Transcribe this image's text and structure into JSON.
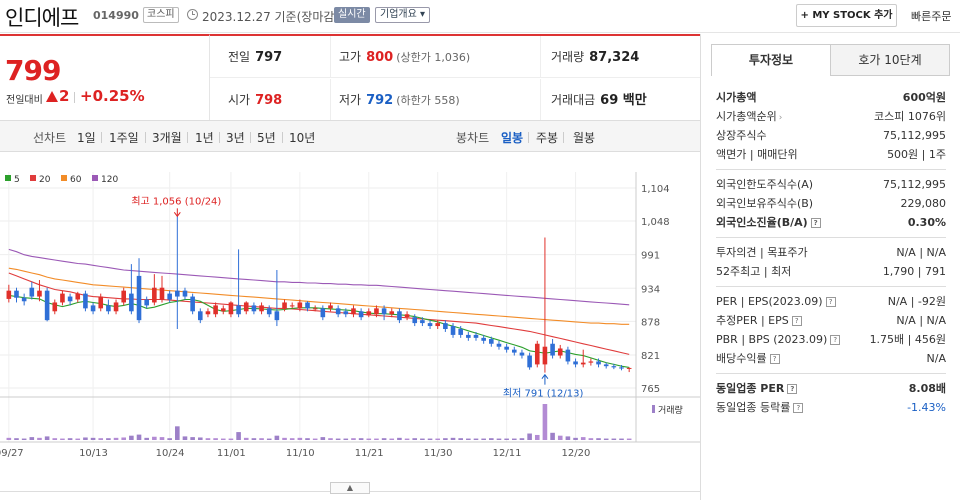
{
  "header": {
    "name": "인디에프",
    "code": "014990",
    "market": "코스피",
    "date": "2023.12.27 기준(장마감)",
    "realtime": "실시간",
    "overview": "기업개요",
    "mystock": "+ MY STOCK 추가",
    "quick_order": "빠른주문"
  },
  "price": {
    "current": "799",
    "change_label": "전일대비",
    "change": "2",
    "rate": "+0.25%"
  },
  "summary": {
    "prev_label": "전일",
    "prev": "797",
    "high_label": "고가",
    "high": "800",
    "upper_limit": "(상한가 1,036)",
    "volume_label": "거래량",
    "volume": "87,324",
    "open_label": "시가",
    "open": "798",
    "low_label": "저가",
    "low": "792",
    "lower_limit": "(하한가 558)",
    "amount_label": "거래대금",
    "amount": "69 백만"
  },
  "toolbar": {
    "line_label": "선차트",
    "periods": [
      "1일",
      "1주일",
      "3개월",
      "1년",
      "3년",
      "5년",
      "10년"
    ],
    "candle_label": "봉차트",
    "candles": [
      "일봉",
      "주봉",
      "월봉"
    ],
    "active_candle": "일봉"
  },
  "chart_data": {
    "type": "candlestick",
    "legend": [
      {
        "name": "5",
        "color": "#2ca02c"
      },
      {
        "name": "20",
        "color": "#e03c3c"
      },
      {
        "name": "60",
        "color": "#f28c28"
      },
      {
        "name": "120",
        "color": "#9b59b6"
      }
    ],
    "y_ticks": [
      1104,
      1048,
      991,
      934,
      878,
      821,
      765
    ],
    "ylim": [
      765,
      1104
    ],
    "x_labels": [
      "09/27",
      "10/13",
      "10/24",
      "11/01",
      "11/10",
      "11/21",
      "11/30",
      "12/11",
      "12/20"
    ],
    "annotation_high": "최고 1,056 (10/24)",
    "annotation_low": "최저 791 (12/13)",
    "volume_label": "거래량",
    "candles": [
      {
        "o": 916,
        "c": 930,
        "h": 940,
        "l": 910
      },
      {
        "o": 930,
        "c": 918,
        "h": 935,
        "l": 910
      },
      {
        "o": 918,
        "c": 912,
        "h": 925,
        "l": 905
      },
      {
        "o": 935,
        "c": 920,
        "h": 945,
        "l": 915
      },
      {
        "o": 920,
        "c": 930,
        "h": 948,
        "l": 912
      },
      {
        "o": 930,
        "c": 880,
        "h": 935,
        "l": 878
      },
      {
        "o": 895,
        "c": 910,
        "h": 915,
        "l": 890
      },
      {
        "o": 910,
        "c": 925,
        "h": 930,
        "l": 905
      },
      {
        "o": 920,
        "c": 912,
        "h": 925,
        "l": 905
      },
      {
        "o": 915,
        "c": 925,
        "h": 928,
        "l": 910
      },
      {
        "o": 925,
        "c": 900,
        "h": 930,
        "l": 895
      },
      {
        "o": 905,
        "c": 895,
        "h": 910,
        "l": 890
      },
      {
        "o": 900,
        "c": 920,
        "h": 925,
        "l": 895
      },
      {
        "o": 905,
        "c": 895,
        "h": 915,
        "l": 890
      },
      {
        "o": 895,
        "c": 910,
        "h": 915,
        "l": 890
      },
      {
        "o": 910,
        "c": 930,
        "h": 935,
        "l": 905
      },
      {
        "o": 925,
        "c": 895,
        "h": 975,
        "l": 890
      },
      {
        "o": 955,
        "c": 880,
        "h": 985,
        "l": 875
      },
      {
        "o": 915,
        "c": 905,
        "h": 920,
        "l": 900
      },
      {
        "o": 910,
        "c": 935,
        "h": 958,
        "l": 905
      },
      {
        "o": 915,
        "c": 935,
        "h": 955,
        "l": 910
      },
      {
        "o": 925,
        "c": 915,
        "h": 930,
        "l": 910
      },
      {
        "o": 930,
        "c": 920,
        "h": 1056,
        "l": 865
      },
      {
        "o": 930,
        "c": 920,
        "h": 935,
        "l": 915
      },
      {
        "o": 920,
        "c": 895,
        "h": 925,
        "l": 890
      },
      {
        "o": 895,
        "c": 880,
        "h": 900,
        "l": 875
      },
      {
        "o": 890,
        "c": 895,
        "h": 900,
        "l": 885
      },
      {
        "o": 890,
        "c": 905,
        "h": 910,
        "l": 885
      },
      {
        "o": 895,
        "c": 900,
        "h": 905,
        "l": 890
      },
      {
        "o": 890,
        "c": 910,
        "h": 912,
        "l": 885
      },
      {
        "o": 905,
        "c": 890,
        "h": 1000,
        "l": 885
      },
      {
        "o": 895,
        "c": 910,
        "h": 912,
        "l": 890
      },
      {
        "o": 905,
        "c": 895,
        "h": 910,
        "l": 890
      },
      {
        "o": 895,
        "c": 905,
        "h": 910,
        "l": 890
      },
      {
        "o": 900,
        "c": 890,
        "h": 905,
        "l": 885
      },
      {
        "o": 895,
        "c": 880,
        "h": 965,
        "l": 870
      },
      {
        "o": 900,
        "c": 910,
        "h": 915,
        "l": 895
      },
      {
        "o": 905,
        "c": 905,
        "h": 910,
        "l": 900
      },
      {
        "o": 900,
        "c": 910,
        "h": 915,
        "l": 895
      },
      {
        "o": 910,
        "c": 900,
        "h": 912,
        "l": 895
      },
      {
        "o": 900,
        "c": 900,
        "h": 905,
        "l": 895
      },
      {
        "o": 900,
        "c": 885,
        "h": 905,
        "l": 880
      },
      {
        "o": 900,
        "c": 905,
        "h": 910,
        "l": 895
      },
      {
        "o": 900,
        "c": 890,
        "h": 905,
        "l": 885
      },
      {
        "o": 895,
        "c": 890,
        "h": 900,
        "l": 885
      },
      {
        "o": 890,
        "c": 900,
        "h": 905,
        "l": 885
      },
      {
        "o": 895,
        "c": 885,
        "h": 900,
        "l": 880
      },
      {
        "o": 888,
        "c": 895,
        "h": 900,
        "l": 885
      },
      {
        "o": 890,
        "c": 900,
        "h": 905,
        "l": 885
      },
      {
        "o": 900,
        "c": 890,
        "h": 905,
        "l": 880
      },
      {
        "o": 890,
        "c": 895,
        "h": 900,
        "l": 885
      },
      {
        "o": 895,
        "c": 880,
        "h": 900,
        "l": 875
      },
      {
        "o": 885,
        "c": 890,
        "h": 895,
        "l": 880
      },
      {
        "o": 885,
        "c": 875,
        "h": 890,
        "l": 870
      },
      {
        "o": 880,
        "c": 875,
        "h": 885,
        "l": 870
      },
      {
        "o": 875,
        "c": 870,
        "h": 880,
        "l": 865
      },
      {
        "o": 870,
        "c": 875,
        "h": 880,
        "l": 865
      },
      {
        "o": 875,
        "c": 865,
        "h": 880,
        "l": 860
      },
      {
        "o": 870,
        "c": 855,
        "h": 875,
        "l": 850
      },
      {
        "o": 865,
        "c": 855,
        "h": 870,
        "l": 850
      },
      {
        "o": 855,
        "c": 850,
        "h": 860,
        "l": 845
      },
      {
        "o": 855,
        "c": 850,
        "h": 860,
        "l": 845
      },
      {
        "o": 850,
        "c": 845,
        "h": 855,
        "l": 840
      },
      {
        "o": 848,
        "c": 840,
        "h": 852,
        "l": 835
      },
      {
        "o": 840,
        "c": 835,
        "h": 845,
        "l": 830
      },
      {
        "o": 835,
        "c": 830,
        "h": 840,
        "l": 825
      },
      {
        "o": 830,
        "c": 825,
        "h": 835,
        "l": 820
      },
      {
        "o": 825,
        "c": 820,
        "h": 830,
        "l": 815
      },
      {
        "o": 820,
        "c": 800,
        "h": 825,
        "l": 796
      },
      {
        "o": 805,
        "c": 840,
        "h": 845,
        "l": 800
      },
      {
        "o": 805,
        "c": 835,
        "h": 1020,
        "l": 791
      },
      {
        "o": 840,
        "c": 820,
        "h": 848,
        "l": 815
      },
      {
        "o": 820,
        "c": 832,
        "h": 838,
        "l": 815
      },
      {
        "o": 830,
        "c": 810,
        "h": 835,
        "l": 805
      },
      {
        "o": 810,
        "c": 805,
        "h": 815,
        "l": 800
      },
      {
        "o": 805,
        "c": 808,
        "h": 830,
        "l": 800
      },
      {
        "o": 808,
        "c": 810,
        "h": 815,
        "l": 803
      },
      {
        "o": 810,
        "c": 805,
        "h": 815,
        "l": 800
      },
      {
        "o": 805,
        "c": 802,
        "h": 808,
        "l": 798
      },
      {
        "o": 802,
        "c": 800,
        "h": 806,
        "l": 797
      },
      {
        "o": 800,
        "c": 798,
        "h": 804,
        "l": 795
      },
      {
        "o": 798,
        "c": 799,
        "h": 800,
        "l": 792
      }
    ],
    "ma120": [
      1000,
      996,
      991,
      988,
      986,
      984,
      982,
      980,
      978,
      976,
      975,
      973,
      971,
      969,
      967,
      965,
      964,
      963,
      962,
      961,
      960,
      959,
      958,
      957,
      956,
      955,
      954,
      953,
      952,
      951,
      950,
      949,
      948,
      947,
      946,
      945,
      945,
      944,
      944,
      943,
      943,
      942,
      942,
      941,
      941,
      940,
      940,
      939,
      939,
      938,
      937,
      936,
      935,
      934,
      933,
      932,
      931,
      930,
      929,
      928,
      927,
      926,
      925,
      924,
      923,
      922,
      921,
      920,
      919,
      918,
      917,
      916,
      915,
      914,
      913,
      912,
      911,
      910,
      909,
      908,
      907,
      906
    ],
    "ma60": [
      968,
      966,
      963,
      960,
      957,
      953,
      950,
      948,
      946,
      944,
      942,
      940,
      939,
      938,
      937,
      936,
      935,
      934,
      933,
      932,
      931,
      930,
      929,
      928,
      927,
      926,
      925,
      924,
      923,
      922,
      921,
      920,
      919,
      918,
      917,
      916,
      915,
      914,
      913,
      912,
      911,
      910,
      909,
      908,
      907,
      906,
      905,
      904,
      903,
      902,
      901,
      900,
      899,
      898,
      897,
      896,
      895,
      894,
      893,
      892,
      891,
      890,
      889,
      888,
      887,
      886,
      885,
      884,
      883,
      882,
      881,
      880,
      879,
      878,
      877,
      876,
      875,
      875,
      874,
      874,
      873,
      873
    ],
    "ma20": [
      960,
      955,
      950,
      945,
      940,
      936,
      932,
      930,
      928,
      925,
      922,
      920,
      919,
      918,
      917,
      916,
      916,
      915,
      915,
      915,
      915,
      914,
      913,
      912,
      911,
      910,
      909,
      908,
      907,
      906,
      905,
      904,
      903,
      902,
      901,
      900,
      900,
      899,
      898,
      897,
      896,
      895,
      894,
      893,
      892,
      891,
      890,
      889,
      888,
      887,
      886,
      885,
      884,
      883,
      882,
      881,
      880,
      879,
      878,
      877,
      876,
      875,
      873,
      871,
      869,
      867,
      865,
      863,
      861,
      858,
      855,
      852,
      849,
      846,
      843,
      840,
      837,
      834,
      831,
      828,
      825,
      822
    ],
    "ma5": [
      922,
      920,
      918,
      917,
      916,
      910,
      906,
      903,
      906,
      910,
      912,
      910,
      908,
      905,
      903,
      905,
      908,
      905,
      900,
      902,
      906,
      910,
      912,
      915,
      915,
      912,
      905,
      898,
      895,
      896,
      898,
      900,
      900,
      899,
      898,
      897,
      898,
      900,
      901,
      901,
      901,
      900,
      899,
      898,
      897,
      896,
      894,
      892,
      891,
      891,
      890,
      889,
      888,
      886,
      883,
      880,
      877,
      873,
      870,
      866,
      862,
      858,
      854,
      850,
      846,
      842,
      838,
      834,
      828,
      826,
      824,
      826,
      828,
      825,
      822,
      820,
      816,
      812,
      808,
      805,
      802,
      800
    ],
    "volumes": [
      6,
      5,
      4,
      8,
      6,
      10,
      5,
      4,
      5,
      4,
      7,
      6,
      5,
      5,
      6,
      7,
      12,
      15,
      6,
      9,
      8,
      5,
      38,
      10,
      8,
      7,
      5,
      5,
      4,
      4,
      22,
      6,
      5,
      5,
      4,
      12,
      6,
      5,
      6,
      5,
      4,
      8,
      5,
      4,
      4,
      5,
      5,
      4,
      4,
      5,
      4,
      6,
      4,
      5,
      4,
      4,
      4,
      5,
      6,
      5,
      4,
      4,
      4,
      5,
      4,
      4,
      4,
      5,
      18,
      14,
      100,
      20,
      12,
      10,
      6,
      8,
      5,
      5,
      4,
      4,
      4,
      4
    ]
  },
  "invest": {
    "tab1": "투자정보",
    "tab2": "호가 10단계",
    "market_cap_label": "시가총액",
    "market_cap": "600억원",
    "rank_label": "시가총액순위",
    "rank": "코스피 1076위",
    "shares_label": "상장주식수",
    "shares": "75,112,995",
    "par_label": "액면가",
    "unit_label": "매매단위",
    "par_unit": "500원 | 1주",
    "foreign_limit_label": "외국인한도주식수(A)",
    "foreign_limit": "75,112,995",
    "foreign_hold_label": "외국인보유주식수(B)",
    "foreign_hold": "229,080",
    "foreign_rate_label": "외국인소진율(B/A)",
    "foreign_rate": "0.30%",
    "opinion_label": "투자의견",
    "target_label": "목표주가",
    "opinion_target": "N/A | N/A",
    "w52_label": "52주최고",
    "w52_low_label": "최저",
    "w52": "1,790 | 791",
    "per_label": "PER",
    "eps_label": "EPS(2023.09)",
    "per_eps": "N/A | -92원",
    "est_per_label": "추정PER",
    "est_eps_label": "EPS",
    "est_per_eps": "N/A | N/A",
    "pbr_label": "PBR",
    "bps_label": "BPS (2023.09)",
    "pbr_bps": "1.75배 | 456원",
    "div_label": "배당수익률",
    "div": "N/A",
    "ind_per_label": "동일업종 PER",
    "ind_per": "8.08배",
    "ind_rate_label": "동일업종 등락률",
    "ind_rate": "-1.43%"
  }
}
